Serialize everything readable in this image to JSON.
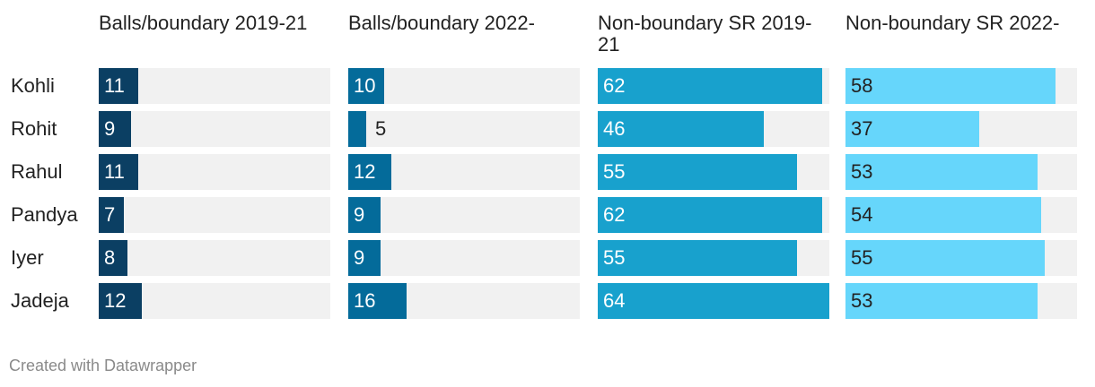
{
  "chart_data": {
    "type": "bar",
    "categories": [
      "Kohli",
      "Rohit",
      "Rahul",
      "Pandya",
      "Iyer",
      "Jadeja"
    ],
    "series": [
      {
        "name": "Balls/boundary 2019-21",
        "values": [
          11,
          9,
          11,
          7,
          8,
          12
        ],
        "color": "#0b3f63",
        "max": 64
      },
      {
        "name": "Balls/boundary 2022-",
        "values": [
          10,
          5,
          12,
          9,
          9,
          16
        ],
        "color": "#046b9a",
        "max": 64
      },
      {
        "name": "Non-boundary SR 2019-21",
        "values": [
          62,
          46,
          55,
          62,
          55,
          64
        ],
        "color": "#18a1cd",
        "max": 64
      },
      {
        "name": "Non-boundary SR 2022-",
        "values": [
          58,
          37,
          53,
          54,
          55,
          53
        ],
        "color": "#66d6fb",
        "max": 64
      }
    ]
  },
  "footer": "Created with Datawrapper"
}
